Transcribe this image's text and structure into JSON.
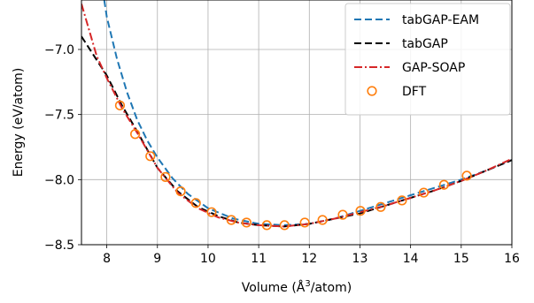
{
  "chart_data": {
    "type": "line",
    "xlabel": "Volume (Å",
    "xlabel_sup": "3",
    "xlabel_suffix": "/atom)",
    "ylabel": "Energy (eV/atom)",
    "xlim": [
      7.5,
      16
    ],
    "ylim": [
      -8.5,
      -6.62
    ],
    "xticks": [
      8,
      9,
      10,
      11,
      12,
      13,
      14,
      15,
      16
    ],
    "yticks": [
      -8.5,
      -8.0,
      -7.5,
      -7.0
    ],
    "xtick_labels": [
      "8",
      "9",
      "10",
      "11",
      "12",
      "13",
      "14",
      "15",
      "16"
    ],
    "ytick_labels": [
      "−8.5",
      "−8.0",
      "−7.5",
      "−7.0"
    ],
    "grid": true,
    "legend_position": "top-right",
    "series": [
      {
        "name": "tabGAP-EAM",
        "style": "dashed",
        "color": "#1f77b4",
        "x": [
          7.95,
          8.0,
          8.2,
          8.4,
          8.6,
          8.8,
          9.0,
          9.3,
          9.6,
          10.0,
          10.5,
          11.0,
          11.5,
          12.0,
          12.5,
          13.0,
          13.5,
          14.0,
          14.5,
          15.0,
          15.5,
          16.0
        ],
        "y": [
          -6.62,
          -6.75,
          -7.07,
          -7.33,
          -7.54,
          -7.7,
          -7.83,
          -7.99,
          -8.11,
          -8.22,
          -8.3,
          -8.34,
          -8.35,
          -8.34,
          -8.3,
          -8.24,
          -8.18,
          -8.12,
          -8.06,
          -8.0,
          -7.93,
          -7.85
        ]
      },
      {
        "name": "tabGAP",
        "style": "dashed",
        "color": "#000000",
        "x": [
          7.5,
          8.0,
          8.3,
          8.6,
          9.0,
          9.4,
          9.8,
          10.2,
          10.6,
          11.0,
          11.5,
          12.0,
          12.5,
          13.0,
          13.5,
          14.0,
          14.5,
          15.0,
          15.5,
          16.0
        ],
        "y": [
          -6.9,
          -7.2,
          -7.43,
          -7.63,
          -7.91,
          -8.09,
          -8.21,
          -8.28,
          -8.33,
          -8.35,
          -8.36,
          -8.34,
          -8.3,
          -8.26,
          -8.2,
          -8.14,
          -8.08,
          -8.01,
          -7.93,
          -7.85
        ]
      },
      {
        "name": "GAP-SOAP",
        "style": "dashdot",
        "color": "#d62728",
        "x": [
          7.5,
          7.8,
          8.0,
          8.3,
          8.6,
          9.0,
          9.4,
          9.8,
          10.2,
          10.6,
          11.0,
          11.5,
          12.0,
          12.5,
          13.0,
          13.5,
          14.0,
          14.5,
          15.0,
          15.5,
          16.0
        ],
        "y": [
          -6.65,
          -7.05,
          -7.22,
          -7.45,
          -7.64,
          -7.91,
          -8.1,
          -8.22,
          -8.29,
          -8.33,
          -8.35,
          -8.36,
          -8.34,
          -8.3,
          -8.25,
          -8.2,
          -8.14,
          -8.08,
          -8.01,
          -7.93,
          -7.84
        ]
      },
      {
        "name": "DFT",
        "style": "markers",
        "color": "#ff7f0e",
        "x": [
          8.26,
          8.56,
          8.86,
          9.16,
          9.46,
          9.76,
          10.07,
          10.46,
          10.76,
          11.16,
          11.51,
          11.91,
          12.26,
          12.66,
          13.01,
          13.41,
          13.83,
          14.26,
          14.66,
          15.11
        ],
        "y": [
          -7.43,
          -7.65,
          -7.82,
          -7.98,
          -8.09,
          -8.18,
          -8.25,
          -8.31,
          -8.33,
          -8.35,
          -8.35,
          -8.33,
          -8.31,
          -8.27,
          -8.24,
          -8.21,
          -8.16,
          -8.1,
          -8.04,
          -7.97
        ]
      }
    ]
  }
}
